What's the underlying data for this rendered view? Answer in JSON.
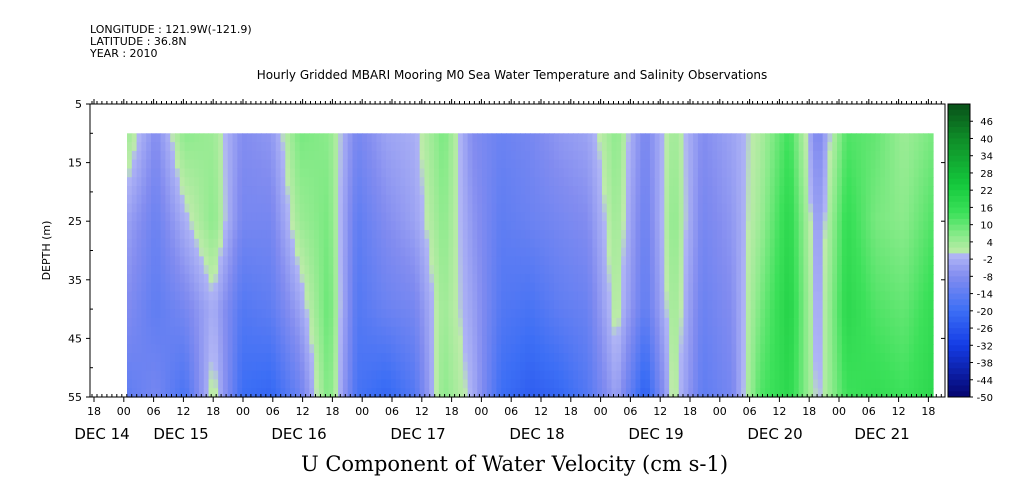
{
  "header": {
    "longitude": "LONGITUDE : 121.9W(-121.9)",
    "latitude": "LATITUDE : 36.8N",
    "year": "YEAR : 2010",
    "title": "Hourly Gridded MBARI Mooring M0 Sea Water Temperature and Salinity Observations"
  },
  "chart_data": {
    "type": "heatmap",
    "title": "Hourly Gridded MBARI Mooring M0 Sea Water Temperature and Salinity Observations",
    "xlabel": "U Component of Water Velocity (cm s-1)",
    "ylabel": "DEPTH (m)",
    "y_ticks": [
      5,
      15,
      25,
      35,
      45,
      55
    ],
    "ylim": [
      55,
      5
    ],
    "data_depth_range": [
      10,
      55
    ],
    "x_hour_ticks": [
      "18",
      "00",
      "06",
      "12",
      "18",
      "00",
      "06",
      "12",
      "18",
      "00",
      "06",
      "12",
      "18",
      "00",
      "06",
      "12",
      "18",
      "00",
      "06",
      "12",
      "18",
      "00",
      "06",
      "12",
      "18",
      "00",
      "06",
      "12",
      "18",
      "00",
      "06",
      "12",
      "18"
    ],
    "x_date_labels": [
      "DEC 14",
      "DEC 15",
      "DEC 16",
      "DEC 17",
      "DEC 18",
      "DEC 19",
      "DEC 20",
      "DEC 21"
    ],
    "colorbar_labels": [
      "46",
      "40",
      "34",
      "28",
      "22",
      "16",
      "10",
      "4",
      "-2",
      "-8",
      "-14",
      "-20",
      "-26",
      "-32",
      "-38",
      "-44",
      "-50"
    ],
    "colorbar_range": [
      -50,
      52
    ],
    "colors": {
      "negative_dark": "#0a0a8c",
      "negative_mid": "#3366ff",
      "negative_light": "#aab0f0",
      "positive_light": "#b6f0a0",
      "positive_mid": "#22dd44",
      "positive_dark": "#0a6a18"
    },
    "time_columns": [
      "DEC 14 12:00",
      "DEC 15 00:00",
      "DEC 15 06:00",
      "DEC 15 12:00",
      "DEC 15 18:00",
      "DEC 16 00:00",
      "DEC 16 06:00",
      "DEC 16 12:00",
      "DEC 16 18:00",
      "DEC 17 00:00",
      "DEC 17 06:00",
      "DEC 17 12:00",
      "DEC 17 18:00",
      "DEC 18 00:00",
      "DEC 18 06:00",
      "DEC 18 12:00",
      "DEC 18 18:00",
      "DEC 19 00:00",
      "DEC 19 06:00",
      "DEC 19 12:00",
      "DEC 19 18:00",
      "DEC 20 00:00",
      "DEC 20 06:00",
      "DEC 20 12:00",
      "DEC 20 18:00",
      "DEC 21 00:00",
      "DEC 21 06:00",
      "DEC 21 12:00",
      "DEC 21 18:00"
    ],
    "depth_rows": [
      10,
      25,
      40,
      55
    ],
    "values": [
      [
        4,
        -8,
        6,
        4,
        -8,
        -6,
        8,
        6,
        -10,
        -4,
        -2,
        8,
        -8,
        -12,
        -10,
        -6,
        -4,
        6,
        -10,
        4,
        -8,
        -4,
        2,
        14,
        -10,
        12,
        10,
        4,
        8
      ],
      [
        -4,
        -12,
        -2,
        6,
        -10,
        -10,
        4,
        8,
        -14,
        -8,
        -4,
        6,
        -6,
        -14,
        -12,
        -10,
        -8,
        4,
        -12,
        6,
        -10,
        -6,
        4,
        18,
        -6,
        16,
        8,
        6,
        12
      ],
      [
        -8,
        -14,
        -10,
        -2,
        -16,
        -14,
        -4,
        10,
        -16,
        -12,
        -10,
        4,
        -4,
        -16,
        -18,
        -14,
        -12,
        2,
        -14,
        4,
        -12,
        -8,
        8,
        20,
        -4,
        18,
        12,
        10,
        16
      ],
      [
        -14,
        -10,
        -18,
        2,
        -20,
        -22,
        -12,
        8,
        -18,
        -22,
        -16,
        6,
        -2,
        -20,
        -24,
        -22,
        -16,
        -4,
        -24,
        2,
        -14,
        -10,
        12,
        18,
        -2,
        14,
        16,
        14,
        18
      ]
    ]
  }
}
